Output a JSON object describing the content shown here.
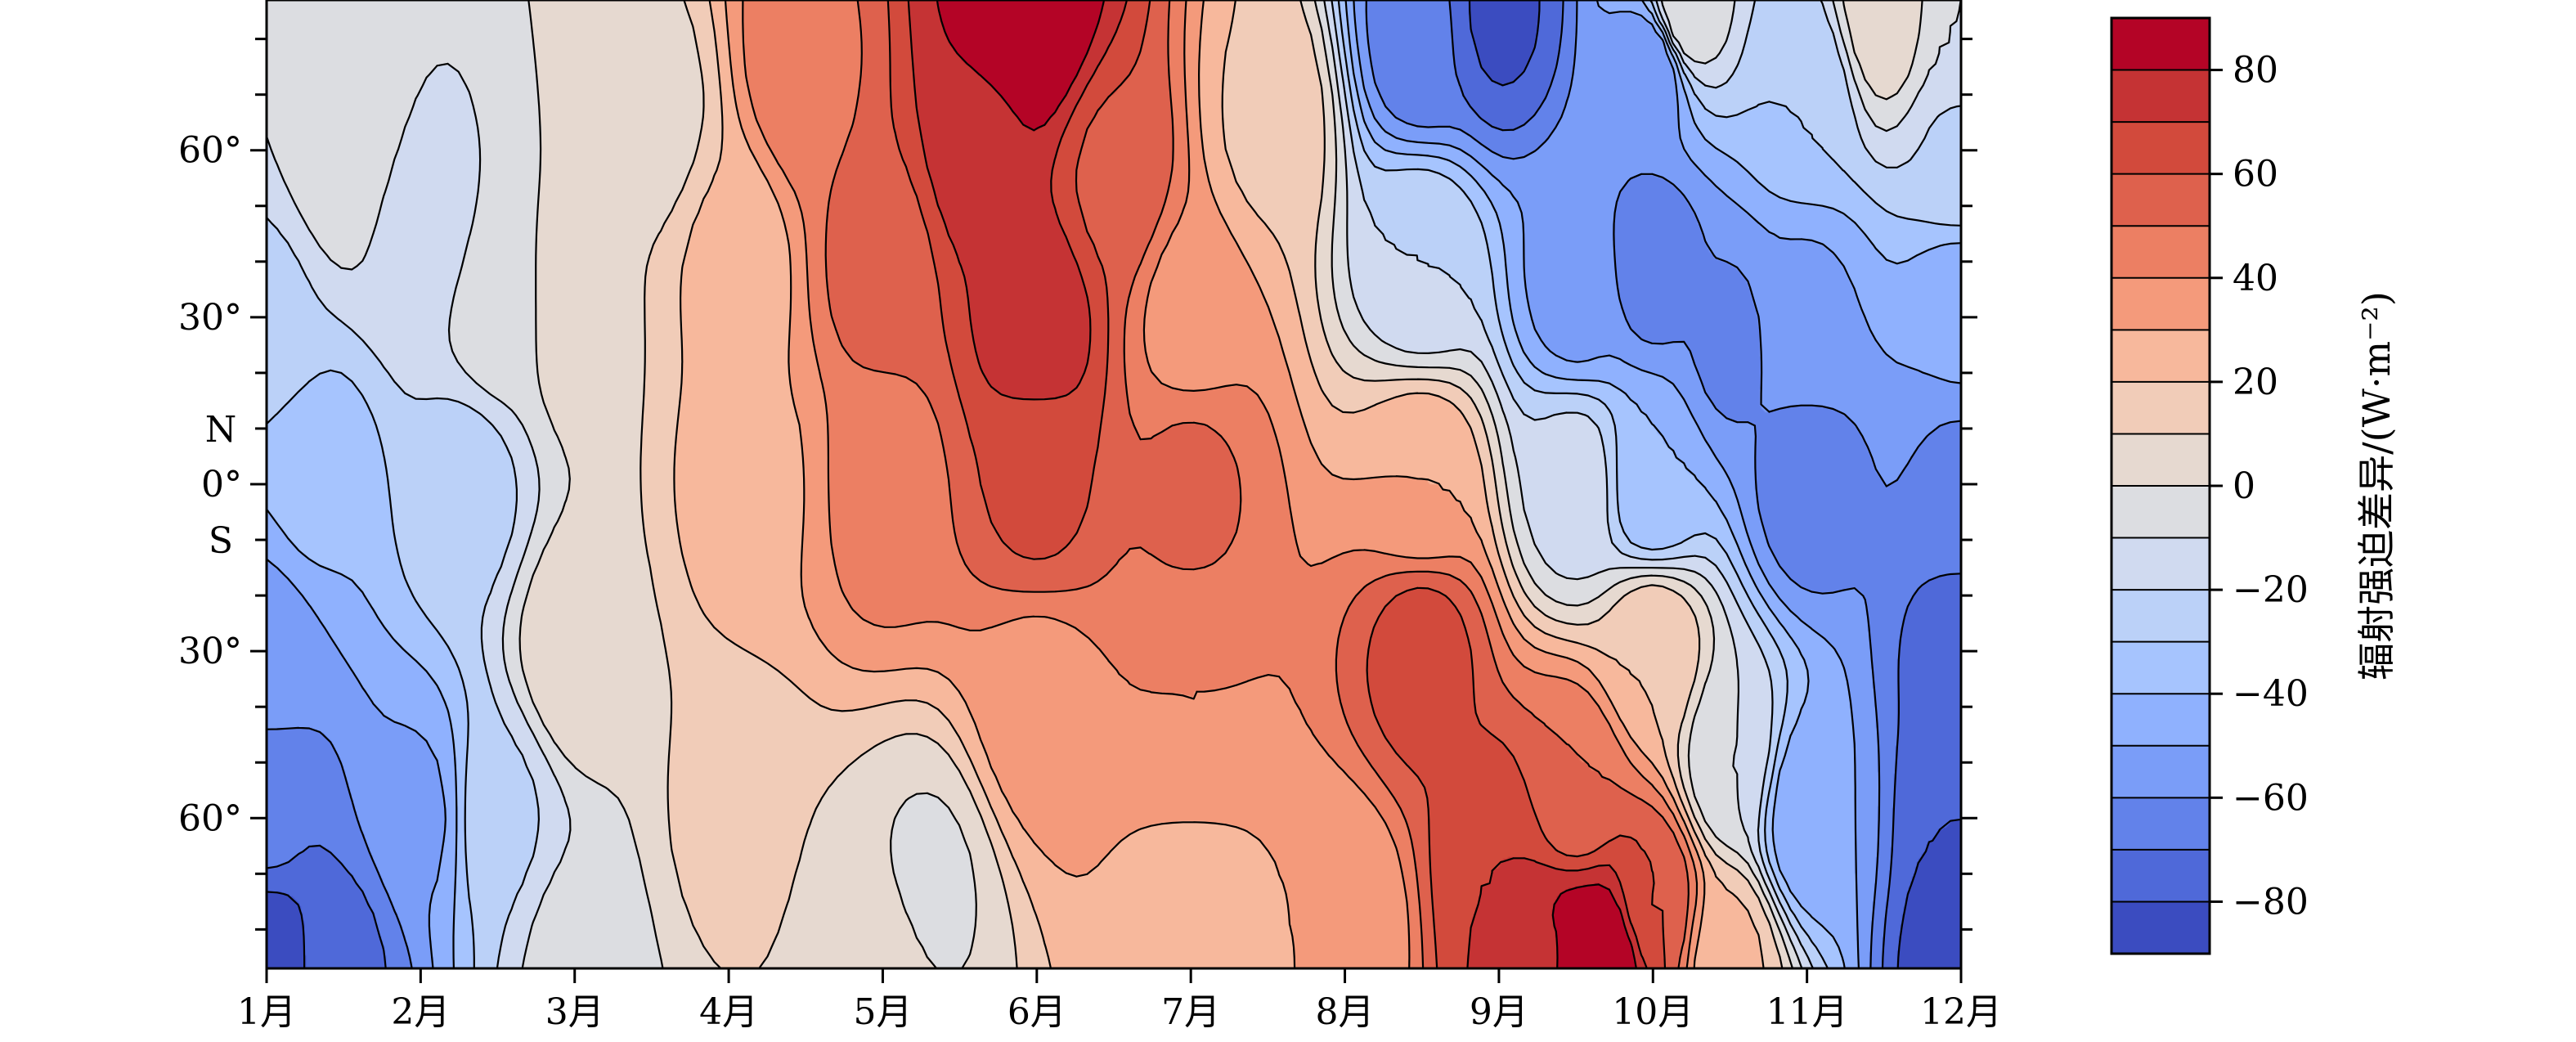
{
  "chart_data": {
    "type": "heatmap",
    "subtype": "filled-contour",
    "title": "",
    "x_ticks": [
      "1月",
      "2月",
      "3月",
      "4月",
      "5月",
      "6月",
      "7月",
      "8月",
      "9月",
      "10月",
      "11月",
      "12月"
    ],
    "x_range": [
      1,
      12
    ],
    "y_ticks": [
      {
        "lat": 60,
        "label": "60°"
      },
      {
        "lat": 30,
        "label": "30°"
      },
      {
        "lat": 0,
        "label": "0°"
      },
      {
        "lat": -30,
        "label": "30°"
      },
      {
        "lat": -60,
        "label": "60°"
      }
    ],
    "y_hemisphere_labels": {
      "north": "N",
      "south": "S"
    },
    "y_range": [
      -87,
      87
    ],
    "colorbar": {
      "label": "辐射强迫差异/(W·m⁻²)",
      "levels": [
        -90,
        -80,
        -70,
        -60,
        -50,
        -40,
        -30,
        -20,
        -10,
        0,
        10,
        20,
        30,
        40,
        50,
        60,
        70,
        80,
        90
      ],
      "tick_values": [
        80,
        60,
        40,
        20,
        0,
        -20,
        -40,
        -60,
        -80
      ],
      "tick_labels": [
        "80",
        "60",
        "40",
        "20",
        "0",
        "−20",
        "−40",
        "−60",
        "−80"
      ],
      "colors": [
        "#3b4cc0",
        "#4f69d9",
        "#6282ea",
        "#7a9df8",
        "#8fb1fe",
        "#a6c4fe",
        "#bbd1f8",
        "#d0daf0",
        "#dcdde1",
        "#e6d9d0",
        "#f1ccb8",
        "#f7b89c",
        "#f49a7b",
        "#ec7f63",
        "#de614d",
        "#d24a3c",
        "#c53334",
        "#b40426"
      ]
    },
    "grid": false,
    "anchors": {
      "note_units": "month (1-12) vs latitude (deg) vs forcing difference (W m-2)",
      "data": [
        [
          1,
          -85,
          -88
        ],
        [
          1.5,
          -85,
          -72
        ],
        [
          1,
          -60,
          -68
        ],
        [
          1,
          -30,
          -55
        ],
        [
          1.3,
          0,
          -38
        ],
        [
          1,
          30,
          -22
        ],
        [
          1.5,
          60,
          -2
        ],
        [
          2,
          -60,
          -52
        ],
        [
          2.5,
          -60,
          -22
        ],
        [
          2.3,
          0,
          -25
        ],
        [
          2.5,
          30,
          -5
        ],
        [
          2,
          45,
          -15
        ],
        [
          3,
          -85,
          -6
        ],
        [
          3,
          -30,
          8
        ],
        [
          3,
          30,
          6
        ],
        [
          3.5,
          65,
          5
        ],
        [
          4,
          -60,
          12
        ],
        [
          4.2,
          0,
          28
        ],
        [
          4,
          40,
          22
        ],
        [
          4.5,
          75,
          48
        ],
        [
          5,
          -85,
          4
        ],
        [
          5.3,
          -72,
          -2
        ],
        [
          5,
          0,
          45
        ],
        [
          5,
          40,
          55
        ],
        [
          5.6,
          60,
          75
        ],
        [
          6,
          85,
          90
        ],
        [
          5.8,
          85,
          86
        ],
        [
          6,
          -40,
          35
        ],
        [
          6,
          0,
          62
        ],
        [
          6,
          30,
          78
        ],
        [
          6.5,
          55,
          58
        ],
        [
          7,
          -80,
          22
        ],
        [
          7,
          -40,
          40
        ],
        [
          7,
          0,
          52
        ],
        [
          7,
          30,
          35
        ],
        [
          7.5,
          65,
          18
        ],
        [
          8,
          -80,
          30
        ],
        [
          8.5,
          -30,
          65
        ],
        [
          8.5,
          0,
          30
        ],
        [
          8.5,
          40,
          -20
        ],
        [
          8.5,
          80,
          -68
        ],
        [
          9,
          -70,
          70
        ],
        [
          9.3,
          -85,
          78
        ],
        [
          9.5,
          -55,
          50
        ],
        [
          9.5,
          -85,
          88
        ],
        [
          9.7,
          -85,
          90
        ],
        [
          9.5,
          0,
          -15
        ],
        [
          9.5,
          35,
          -55
        ],
        [
          9,
          85,
          -82
        ],
        [
          10,
          -75,
          60
        ],
        [
          10,
          -30,
          20
        ],
        [
          10,
          0,
          -40
        ],
        [
          10,
          40,
          -65
        ],
        [
          10,
          75,
          -60
        ],
        [
          10.5,
          -85,
          22
        ],
        [
          10.5,
          -50,
          -10
        ],
        [
          10.5,
          25,
          -62
        ],
        [
          10.2,
          85,
          0
        ],
        [
          11,
          -60,
          -50
        ],
        [
          11,
          0,
          -66
        ],
        [
          11,
          30,
          -52
        ],
        [
          11,
          70,
          -30
        ],
        [
          11.5,
          85,
          8
        ],
        [
          12,
          -85,
          -88
        ],
        [
          12,
          -60,
          -80
        ],
        [
          12,
          -30,
          -75
        ],
        [
          12,
          0,
          -62
        ],
        [
          12,
          30,
          -48
        ],
        [
          12,
          60,
          -22
        ],
        [
          12,
          80,
          -10
        ]
      ]
    }
  }
}
